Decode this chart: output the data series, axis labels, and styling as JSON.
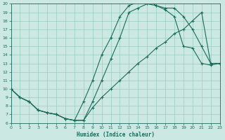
{
  "xlabel": "Humidex (Indice chaleur)",
  "background_color": "#cce8e2",
  "grid_color": "#99ccc2",
  "line_color": "#1a6b5a",
  "xlim": [
    0,
    23
  ],
  "ylim": [
    6,
    20
  ],
  "xticks": [
    0,
    1,
    2,
    3,
    4,
    5,
    6,
    7,
    8,
    9,
    10,
    11,
    12,
    13,
    14,
    15,
    16,
    17,
    18,
    19,
    20,
    21,
    22,
    23
  ],
  "yticks": [
    6,
    7,
    8,
    9,
    10,
    11,
    12,
    13,
    14,
    15,
    16,
    17,
    18,
    19,
    20
  ],
  "line1_x": [
    0,
    1,
    2,
    3,
    4,
    5,
    6,
    7,
    8,
    9,
    10,
    11,
    12,
    13,
    14,
    15,
    16,
    17,
    18,
    19,
    20,
    21,
    22,
    23
  ],
  "line1_y": [
    10,
    9,
    8.5,
    7.5,
    7.2,
    7.0,
    6.5,
    6.3,
    8.5,
    11.0,
    14.0,
    16.0,
    18.5,
    19.8,
    20.2,
    20.5,
    19.8,
    19.5,
    19.5,
    18.5,
    17.0,
    15.0,
    13.0,
    13.0
  ],
  "line2_x": [
    0,
    1,
    2,
    3,
    4,
    5,
    6,
    7,
    8,
    9,
    10,
    11,
    12,
    13,
    14,
    15,
    16,
    17,
    18,
    19,
    20,
    21,
    22,
    23
  ],
  "line2_y": [
    10,
    9,
    8.5,
    7.5,
    7.2,
    7.0,
    6.5,
    6.3,
    6.3,
    8.5,
    11.0,
    13.5,
    16.0,
    19.0,
    19.5,
    20.0,
    19.8,
    19.3,
    18.5,
    15.0,
    14.8,
    13.0,
    12.8,
    13.0
  ],
  "line3_x": [
    0,
    1,
    2,
    3,
    4,
    5,
    6,
    7,
    8,
    9,
    10,
    11,
    12,
    13,
    14,
    15,
    16,
    17,
    18,
    19,
    20,
    21,
    22,
    23
  ],
  "line3_y": [
    10,
    9,
    8.5,
    7.5,
    7.2,
    7.0,
    6.5,
    6.3,
    6.3,
    7.8,
    9.0,
    10.0,
    11.0,
    12.0,
    13.0,
    13.8,
    14.8,
    15.5,
    16.5,
    17.0,
    18.0,
    19.0,
    13.0,
    13.0
  ]
}
